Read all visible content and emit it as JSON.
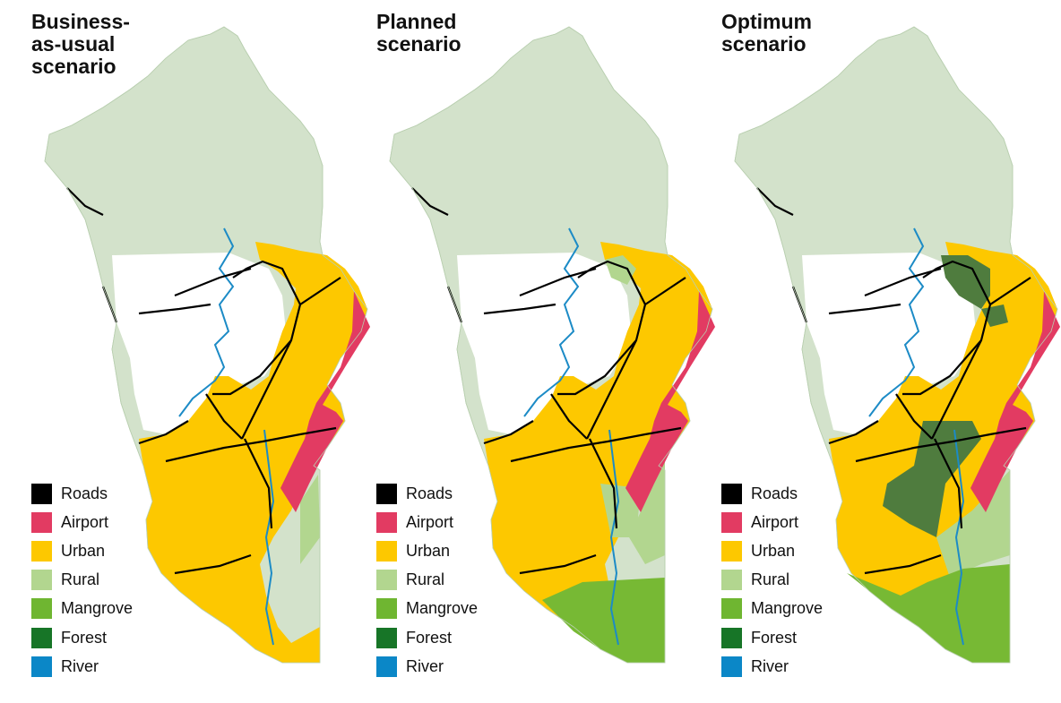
{
  "colors": {
    "forest_bg": "#d3e2cb",
    "roads": "#000000",
    "airport": "#e23b62",
    "urban": "#fdc800",
    "rural": "#b2d68f",
    "mangrove": "#77b934",
    "forest": "#4f7c3e",
    "river": "#1c8bc6"
  },
  "legend": [
    {
      "key": "roads",
      "label": "Roads",
      "color": "#000000"
    },
    {
      "key": "airport",
      "label": "Airport",
      "color": "#e23b62"
    },
    {
      "key": "urban",
      "label": "Urban",
      "color": "#fdc800"
    },
    {
      "key": "rural",
      "label": "Rural",
      "color": "#b2d68f"
    },
    {
      "key": "mangrove",
      "label": "Mangrove",
      "color": "#6fb631"
    },
    {
      "key": "forest",
      "label": "Forest",
      "color": "#177527"
    },
    {
      "key": "river",
      "label": "River",
      "color": "#0b87c7"
    }
  ],
  "panels": [
    {
      "id": "business",
      "title": "Business-\nas-usual\nscenario"
    },
    {
      "id": "planned",
      "title": "Planned\nscenario"
    },
    {
      "id": "optimum",
      "title": "Optimum\nscenario"
    }
  ]
}
